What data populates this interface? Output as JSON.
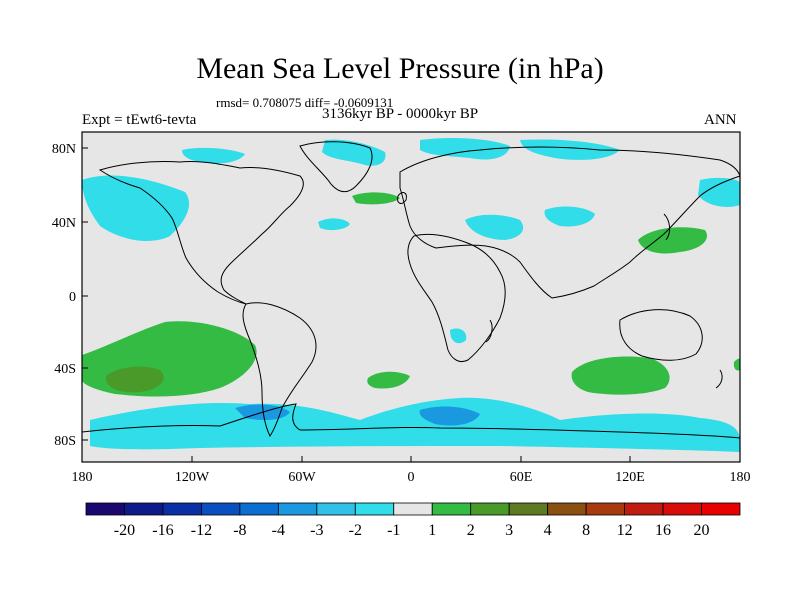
{
  "title": "Mean Sea Level Pressure (in hPa)",
  "stats": "rmsd= 0.708075 diff= -0.0609131",
  "experiment": "Expt = tEwt6-tevta",
  "period": "3136kyr BP - 0000kyr BP",
  "season": "ANN",
  "map": {
    "lat_labels": [
      "80N",
      "40N",
      "0",
      "40S",
      "80S"
    ],
    "lon_labels": [
      "180",
      "120W",
      "60W",
      "0",
      "60E",
      "120E",
      "180"
    ],
    "background_color": "#e6e6e6"
  },
  "colorbar": {
    "labels": [
      "-20",
      "-16",
      "-12",
      "-8",
      "-4",
      "-3",
      "-2",
      "-1",
      "1",
      "2",
      "3",
      "4",
      "8",
      "12",
      "16",
      "20"
    ],
    "colors": [
      "#1a0870",
      "#0f1a8a",
      "#0a2fa5",
      "#0a4fc0",
      "#0a6fd0",
      "#1a98e0",
      "#30c0e8",
      "#30dde8",
      "#e6e6e6",
      "#33bb44",
      "#4a9a2a",
      "#5e7a22",
      "#8a5012",
      "#a83a10",
      "#c01c10",
      "#d80c08",
      "#e80000"
    ]
  }
}
